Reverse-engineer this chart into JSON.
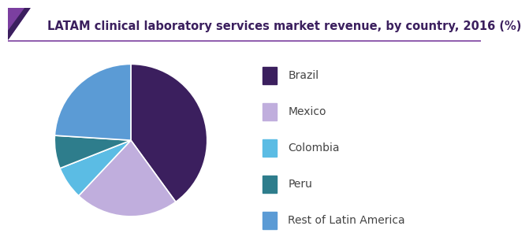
{
  "title": "LATAM clinical laboratory services market revenue, by country, 2016 (%)",
  "labels": [
    "Brazil",
    "Mexico",
    "Colombia",
    "Peru",
    "Rest of Latin America"
  ],
  "values": [
    40,
    22,
    7,
    7,
    24
  ],
  "colors": [
    "#3b1f5e",
    "#c0aedd",
    "#5bbce4",
    "#2e7d8c",
    "#5b9bd5"
  ],
  "background_color": "#ffffff",
  "title_fontsize": 10.5,
  "legend_fontsize": 10,
  "title_color": "#3b1f5e",
  "startangle": 90,
  "header_purple": "#7b3fa0",
  "header_dark": "#3b1f5e",
  "line_color": "#7b3fa0"
}
